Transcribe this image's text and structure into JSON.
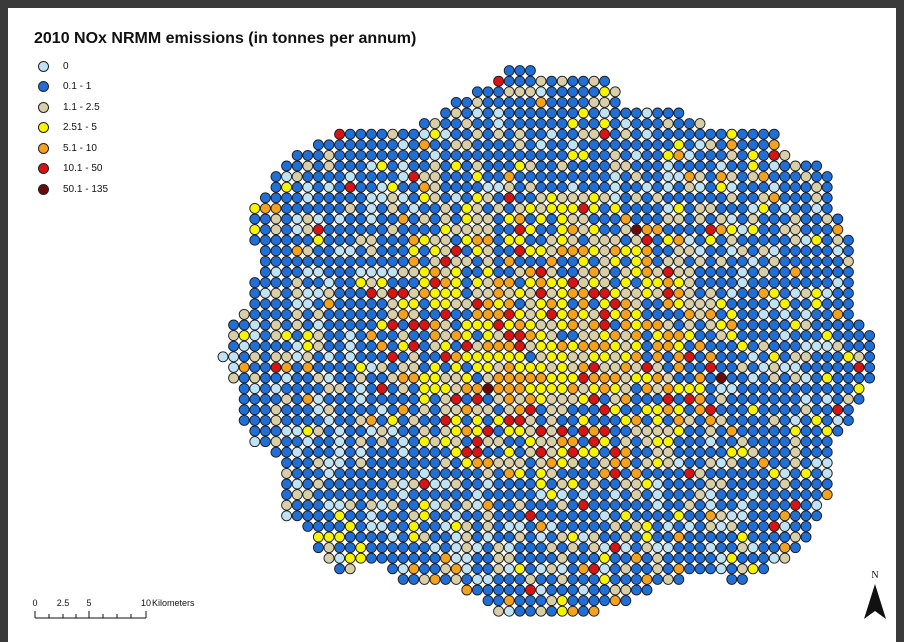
{
  "title": "2010 NOx NRMM emissions (in tonnes per annum)",
  "legend": [
    {
      "label": "0",
      "color": "#bfe3f5"
    },
    {
      "label": "0.1 - 1",
      "color": "#1f6fd6"
    },
    {
      "label": "1.1 - 2.5",
      "color": "#d8cfa8"
    },
    {
      "label": "2.51 - 5",
      "color": "#f7f400"
    },
    {
      "label": "5.1 - 10",
      "color": "#f4a21c"
    },
    {
      "label": "10.1 - 50",
      "color": "#d81313"
    },
    {
      "label": "50.1 - 135",
      "color": "#6b0a0a"
    }
  ],
  "scale_bar": {
    "ticks": [
      "0",
      "2.5",
      "5",
      "10"
    ],
    "unit": "Kilometers"
  },
  "north_arrow": {
    "label": "N"
  }
}
